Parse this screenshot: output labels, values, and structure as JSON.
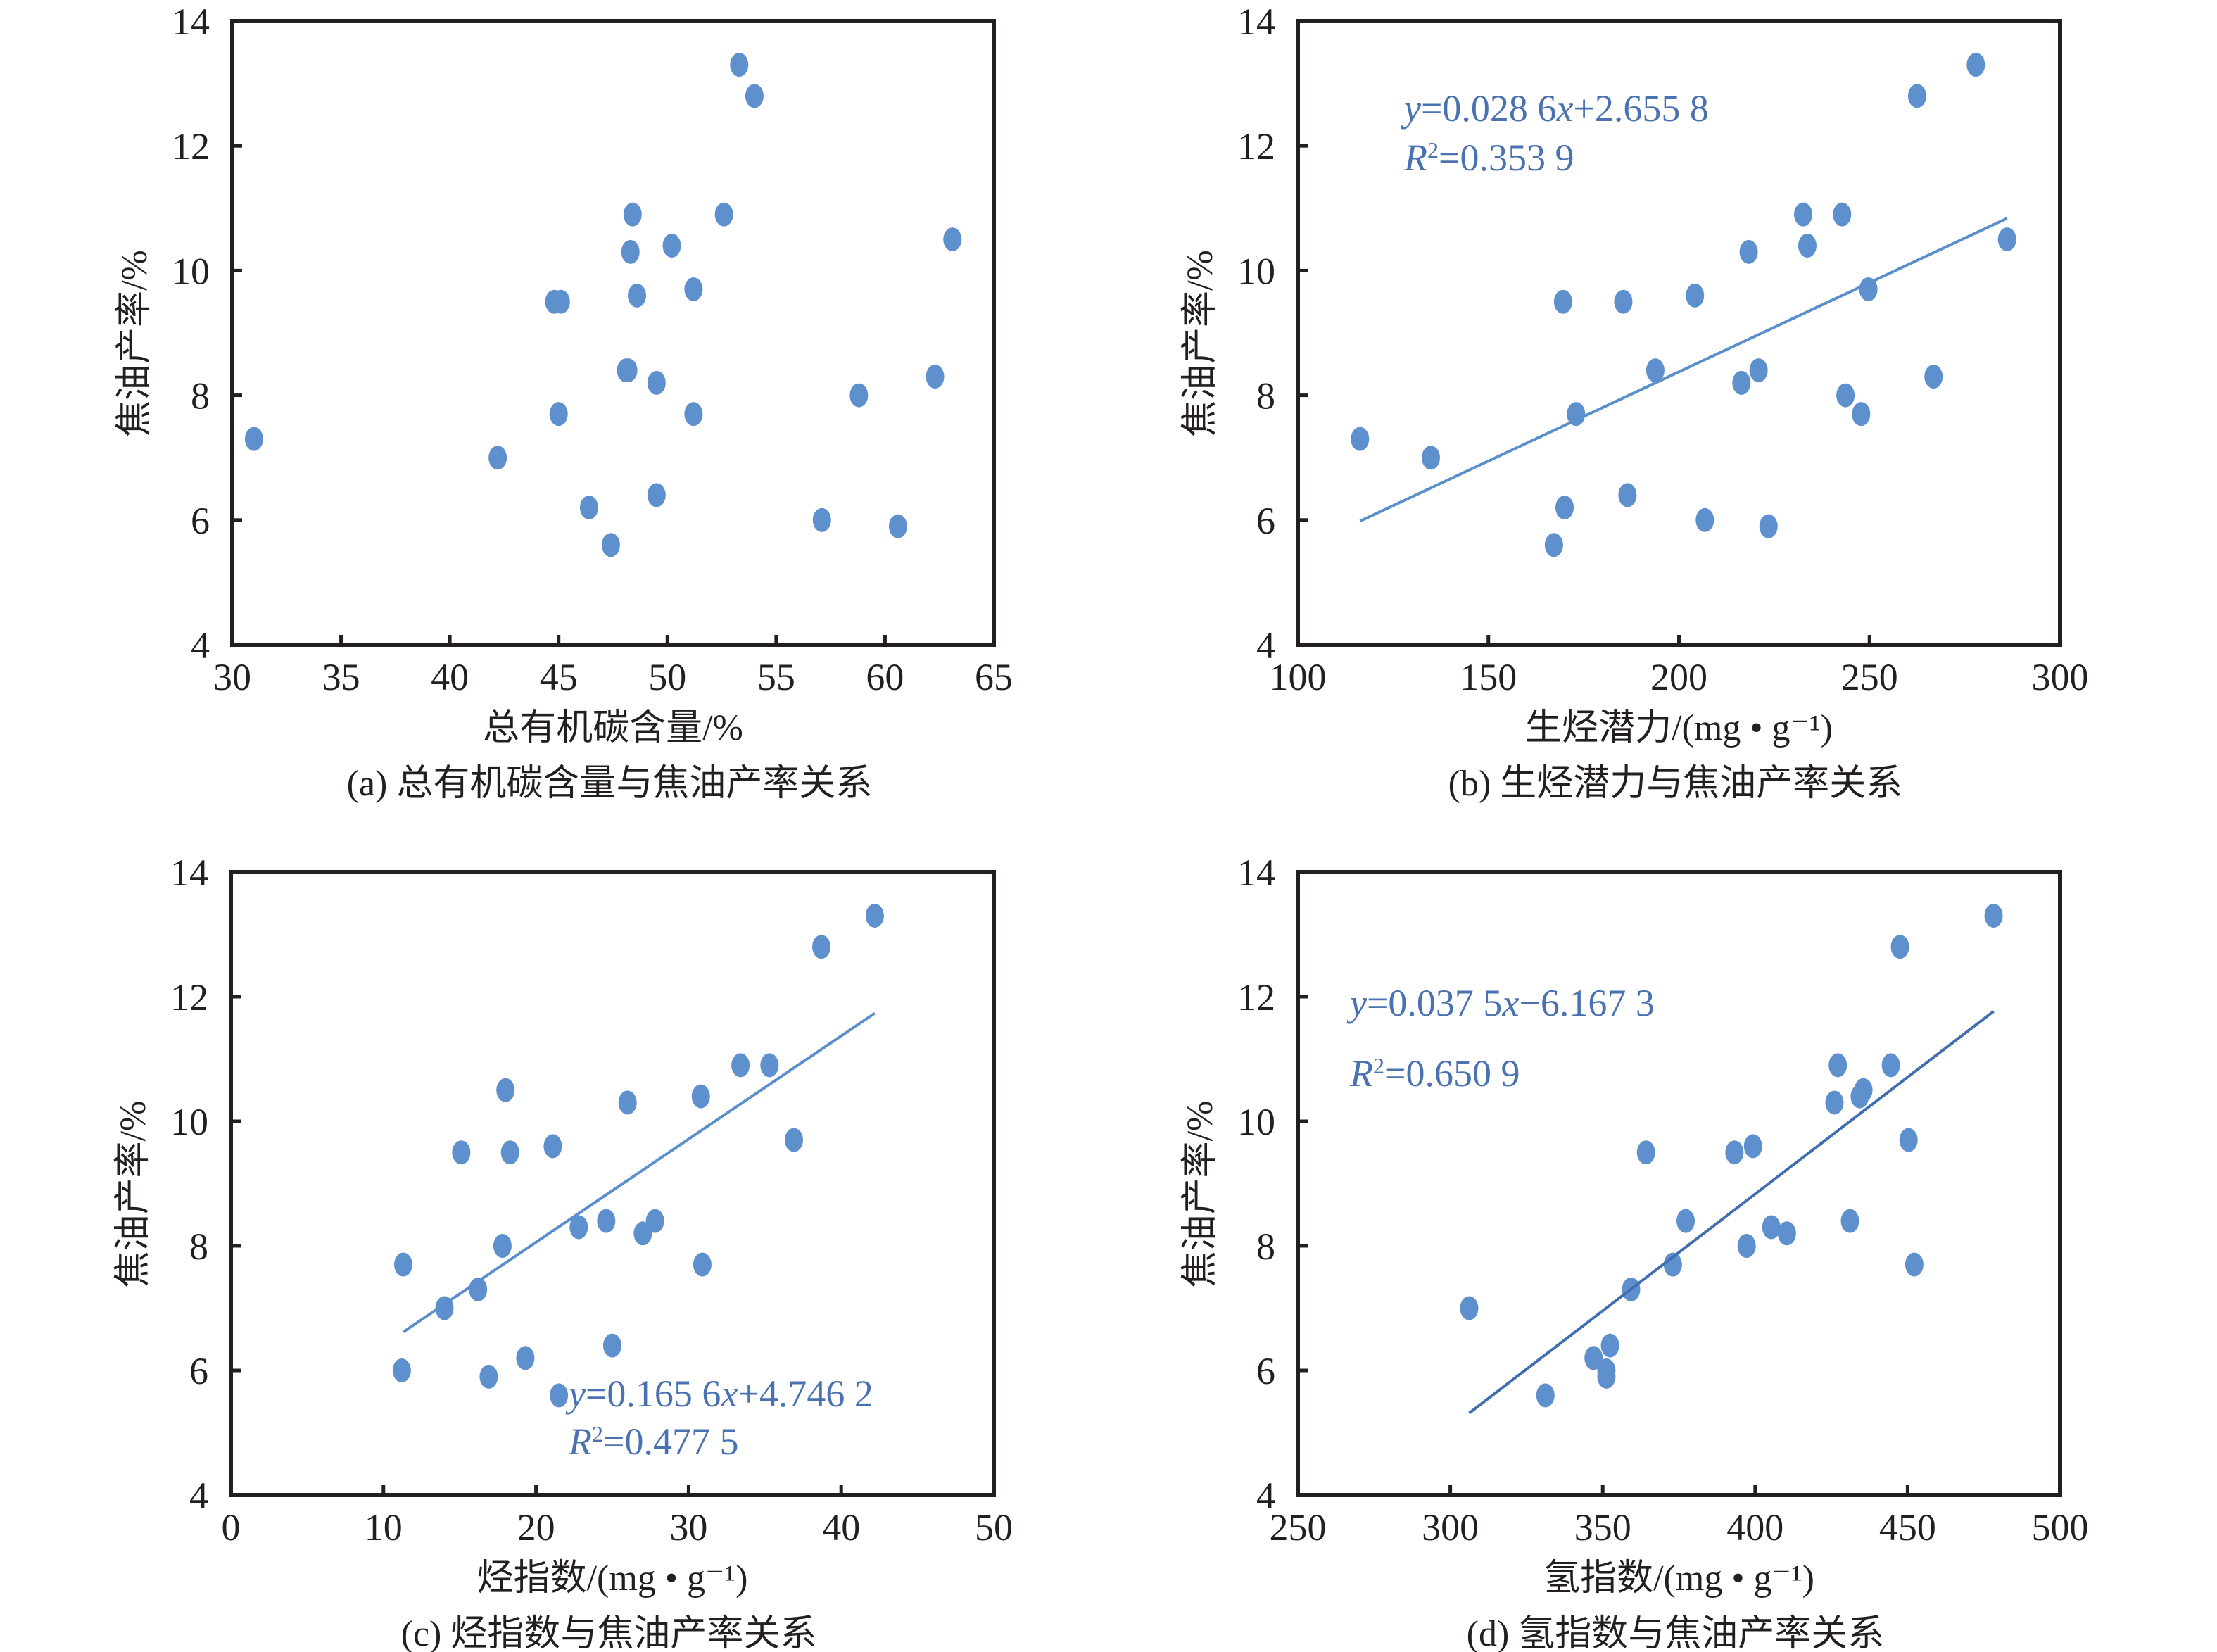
{
  "figure": {
    "point_color": "#5d90cc",
    "equation_color": "#4a72b0",
    "axis_color": "#231f20"
  },
  "chart_data": [
    {
      "id": "a",
      "type": "scatter",
      "title": "(a) 总有机碳含量与焦油产率关系",
      "xlabel": "总有机碳含量/%",
      "ylabel": "焦油产率/%",
      "xlim": [
        30,
        65
      ],
      "ylim": [
        4,
        14
      ],
      "xticks": [
        30,
        35,
        40,
        45,
        50,
        55,
        60,
        65
      ],
      "yticks": [
        4,
        6,
        8,
        10,
        12,
        14
      ],
      "grid": false,
      "legend": "none",
      "points": [
        [
          31.0,
          7.3
        ],
        [
          42.2,
          7.0
        ],
        [
          44.8,
          9.5
        ],
        [
          45.1,
          9.5
        ],
        [
          45.0,
          7.7
        ],
        [
          46.4,
          6.2
        ],
        [
          47.4,
          5.6
        ],
        [
          48.1,
          8.4
        ],
        [
          48.2,
          8.4
        ],
        [
          48.3,
          10.3
        ],
        [
          48.4,
          10.9
        ],
        [
          48.6,
          9.6
        ],
        [
          49.5,
          8.2
        ],
        [
          49.5,
          6.4
        ],
        [
          50.2,
          10.4
        ],
        [
          51.2,
          9.7
        ],
        [
          51.2,
          7.7
        ],
        [
          52.6,
          10.9
        ],
        [
          53.3,
          13.3
        ],
        [
          54.0,
          12.8
        ],
        [
          57.1,
          6.0
        ],
        [
          58.8,
          8.0
        ],
        [
          60.6,
          5.9
        ],
        [
          62.3,
          8.3
        ],
        [
          63.1,
          10.5
        ]
      ],
      "trendline": null
    },
    {
      "id": "b",
      "type": "scatter",
      "title": "(b) 生烃潜力与焦油产率关系",
      "xlabel": "生烃潜力/(mg • g⁻¹)",
      "ylabel": "焦油产率/%",
      "xlim": [
        100,
        300
      ],
      "ylim": [
        4,
        14
      ],
      "xticks": [
        100,
        150,
        200,
        250,
        300
      ],
      "yticks": [
        4,
        6,
        8,
        10,
        12,
        14
      ],
      "grid": false,
      "legend": "none",
      "points": [
        [
          116.3,
          7.3
        ],
        [
          134.9,
          7.0
        ],
        [
          167.2,
          5.6
        ],
        [
          169.6,
          9.5
        ],
        [
          170.0,
          6.2
        ],
        [
          173.0,
          7.7
        ],
        [
          185.4,
          9.5
        ],
        [
          186.5,
          6.4
        ],
        [
          193.8,
          8.4
        ],
        [
          204.2,
          9.6
        ],
        [
          206.8,
          6.0
        ],
        [
          216.4,
          8.2
        ],
        [
          218.3,
          10.3
        ],
        [
          220.9,
          8.4
        ],
        [
          223.5,
          5.9
        ],
        [
          232.6,
          10.9
        ],
        [
          233.7,
          10.4
        ],
        [
          242.8,
          10.9
        ],
        [
          243.7,
          8.0
        ],
        [
          247.8,
          7.7
        ],
        [
          249.7,
          9.7
        ],
        [
          262.5,
          12.8
        ],
        [
          266.8,
          8.3
        ],
        [
          277.9,
          13.3
        ],
        [
          286.1,
          10.5
        ]
      ],
      "trendline": {
        "slope": 0.0286,
        "intercept": 2.6558,
        "x_range": [
          116.3,
          286.1
        ],
        "color": "#5b8fcb",
        "equation": "y=0.028 6x+2.655 8",
        "r2": "R2=0.353 9",
        "eq_parts": [
          [
            "it",
            "y"
          ],
          [
            "n",
            "=0.028 6"
          ],
          [
            "it",
            "x"
          ],
          [
            "n",
            "+2.655 8"
          ]
        ],
        "r2_parts": [
          [
            "it",
            "R"
          ],
          [
            "sup",
            "2"
          ],
          [
            "n",
            "=0.353 9"
          ]
        ],
        "label_position": "top-left"
      }
    },
    {
      "id": "c",
      "type": "scatter",
      "title": "(c) 烃指数与焦油产率关系",
      "xlabel": "烃指数/(mg • g⁻¹)",
      "ylabel": "焦油产率/%",
      "xlim": [
        0,
        50
      ],
      "ylim": [
        4,
        14
      ],
      "xticks": [
        0,
        10,
        20,
        30,
        40,
        50
      ],
      "yticks": [
        4,
        6,
        8,
        10,
        12,
        14
      ],
      "grid": false,
      "legend": "none",
      "points": [
        [
          11.3,
          7.7
        ],
        [
          11.2,
          6.0
        ],
        [
          14.0,
          7.0
        ],
        [
          15.1,
          9.5
        ],
        [
          16.2,
          7.3
        ],
        [
          16.9,
          5.9
        ],
        [
          17.8,
          8.0
        ],
        [
          18.0,
          10.5
        ],
        [
          18.3,
          9.5
        ],
        [
          19.3,
          6.2
        ],
        [
          21.1,
          9.6
        ],
        [
          21.5,
          5.6
        ],
        [
          22.8,
          8.3
        ],
        [
          24.6,
          8.4
        ],
        [
          25.0,
          6.4
        ],
        [
          26.0,
          10.3
        ],
        [
          27.0,
          8.2
        ],
        [
          27.8,
          8.4
        ],
        [
          30.8,
          10.4
        ],
        [
          30.9,
          7.7
        ],
        [
          33.4,
          10.9
        ],
        [
          35.3,
          10.9
        ],
        [
          36.9,
          9.7
        ],
        [
          38.7,
          12.8
        ],
        [
          42.2,
          13.3
        ]
      ],
      "trendline": {
        "slope": 0.1656,
        "intercept": 4.7462,
        "x_range": [
          11.3,
          42.2
        ],
        "color": "#5b8fcb",
        "equation": "y=0.165 6x+4.746 2",
        "r2": "R2=0.477 5",
        "eq_parts": [
          [
            "it",
            "y"
          ],
          [
            "n",
            "=0.165 6"
          ],
          [
            "it",
            "x"
          ],
          [
            "n",
            "+4.746 2"
          ]
        ],
        "r2_parts": [
          [
            "it",
            "R"
          ],
          [
            "sup",
            "2"
          ],
          [
            "n",
            "=0.477 5"
          ]
        ],
        "label_position": "bottom-center"
      }
    },
    {
      "id": "d",
      "type": "scatter",
      "title": "(d) 氢指数与焦油产率关系",
      "xlabel": "氢指数/(mg • g⁻¹)",
      "ylabel": "焦油产率/%",
      "xlim": [
        250,
        500
      ],
      "ylim": [
        4,
        14
      ],
      "xticks": [
        250,
        300,
        350,
        400,
        450,
        500
      ],
      "yticks": [
        4,
        6,
        8,
        10,
        12,
        14
      ],
      "grid": false,
      "legend": "none",
      "points": [
        [
          306.2,
          7.0
        ],
        [
          331.2,
          5.6
        ],
        [
          347.0,
          6.2
        ],
        [
          351.2,
          6.0
        ],
        [
          351.2,
          5.9
        ],
        [
          352.4,
          6.4
        ],
        [
          359.3,
          7.3
        ],
        [
          364.2,
          9.5
        ],
        [
          373.0,
          7.7
        ],
        [
          377.2,
          8.4
        ],
        [
          393.2,
          9.5
        ],
        [
          397.2,
          8.0
        ],
        [
          399.3,
          9.6
        ],
        [
          405.3,
          8.3
        ],
        [
          410.4,
          8.2
        ],
        [
          426.0,
          10.3
        ],
        [
          427.1,
          10.9
        ],
        [
          431.1,
          8.4
        ],
        [
          434.3,
          10.4
        ],
        [
          435.5,
          10.5
        ],
        [
          444.5,
          10.9
        ],
        [
          447.5,
          12.8
        ],
        [
          450.3,
          9.7
        ],
        [
          452.2,
          7.7
        ],
        [
          478.2,
          13.3
        ]
      ],
      "trendline": {
        "slope": 0.0375,
        "intercept": -6.1673,
        "x_range": [
          306.2,
          478.2
        ],
        "color": "#3f6fae",
        "equation": "y=0.037 5x−6.167 3",
        "r2": "R2=0.650 9",
        "eq_parts": [
          [
            "it",
            "y"
          ],
          [
            "n",
            "=0.037 5"
          ],
          [
            "it",
            "x"
          ],
          [
            "n",
            "−6.167 3"
          ]
        ],
        "r2_parts": [
          [
            "it",
            "R"
          ],
          [
            "sup",
            "2"
          ],
          [
            "n",
            "=0.650 9"
          ]
        ],
        "label_position": "top-left"
      }
    }
  ]
}
